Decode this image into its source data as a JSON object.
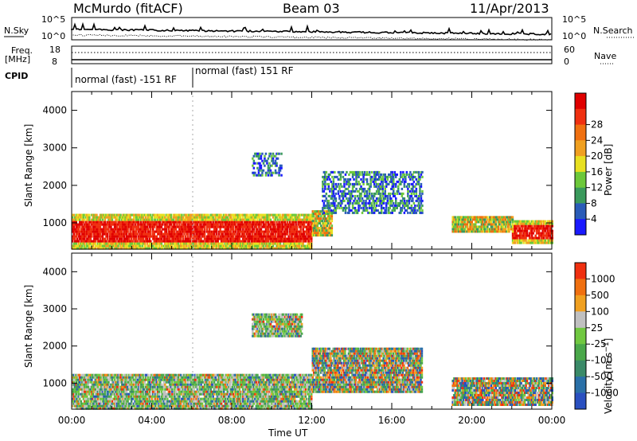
{
  "header": {
    "station": "McMurdo (fitACF)",
    "beam": "Beam 03",
    "date": "11/Apr/2013"
  },
  "side_labels": {
    "nsky": "N.Sky",
    "nsearch": "N.Search",
    "freq_top": "Freq.",
    "freq_unit": "[MHz]",
    "nave": "Nave",
    "cpid": "CPID"
  },
  "small_panels": {
    "noise_left_ticks": [
      "10^5",
      "10^0"
    ],
    "noise_right_ticks": [
      "10^5",
      "10^0"
    ],
    "freq_left_ticks": [
      "18",
      "8"
    ],
    "nave_right_ticks": [
      "60",
      "0"
    ]
  },
  "cpid_segments": [
    {
      "label": "normal (fast) -151 RF"
    },
    {
      "label": "normal (fast) 151 RF"
    }
  ],
  "x_axis": {
    "ticks": [
      "00:00",
      "04:00",
      "08:00",
      "12:00",
      "16:00",
      "20:00",
      "00:00"
    ],
    "label": "Time UT"
  },
  "chart_data": [
    {
      "type": "heatmap",
      "name": "power",
      "ylabel": "Slant Range [km]",
      "y_ticks": [
        "1000",
        "2000",
        "3000",
        "4000"
      ],
      "ylim": [
        300,
        4500
      ],
      "xlim_hours": [
        0,
        24
      ],
      "colorbar": {
        "label": "Power [dB]",
        "ticks": [
          "4",
          "8",
          "12",
          "16",
          "20",
          "24",
          "28"
        ],
        "colors": [
          "#1a1aff",
          "#2a5cb8",
          "#3a9a5c",
          "#6cc83a",
          "#e8e020",
          "#f0a020",
          "#f07010",
          "#f03010",
          "#e00000"
        ]
      },
      "scatter_bands": [
        {
          "t0": 0.0,
          "t1": 12.0,
          "r0": 350,
          "r1": 1300,
          "level": "strong"
        },
        {
          "t0": 12.0,
          "t1": 13.0,
          "r0": 700,
          "r1": 1400,
          "level": "medium"
        },
        {
          "t0": 22.0,
          "t1": 24.0,
          "r0": 500,
          "r1": 1100,
          "level": "strong"
        },
        {
          "t0": 19.0,
          "t1": 22.0,
          "r0": 800,
          "r1": 1200,
          "level": "medium"
        },
        {
          "t0": 12.5,
          "t1": 17.5,
          "r0": 1300,
          "r1": 2400,
          "level": "weak"
        },
        {
          "t0": 9.0,
          "t1": 10.5,
          "r0": 2300,
          "r1": 2900,
          "level": "weak"
        }
      ]
    },
    {
      "type": "heatmap",
      "name": "velocity",
      "ylabel": "Slant Range [km]",
      "y_ticks": [
        "1000",
        "2000",
        "3000",
        "4000"
      ],
      "ylim": [
        300,
        4500
      ],
      "xlim_hours": [
        0,
        24
      ],
      "colorbar": {
        "label": "Velocity [m s^-1]",
        "ticks": [
          "1000",
          "500",
          "100",
          "25",
          "-25",
          "-100",
          "-500",
          "-1000"
        ],
        "colors": [
          "#2a50c0",
          "#2a70a8",
          "#3a8a68",
          "#4aa84a",
          "#70c840",
          "#c0c0c0",
          "#f0a020",
          "#f07010",
          "#f03010"
        ]
      },
      "scatter_bands": [
        {
          "t0": 0.0,
          "t1": 12.0,
          "r0": 350,
          "r1": 1250,
          "level": "mixed"
        },
        {
          "t0": 12.0,
          "t1": 17.5,
          "r0": 800,
          "r1": 2000,
          "level": "mixed"
        },
        {
          "t0": 19.0,
          "t1": 24.0,
          "r0": 450,
          "r1": 1200,
          "level": "mixed"
        },
        {
          "t0": 9.0,
          "t1": 11.5,
          "r0": 2300,
          "r1": 2900,
          "level": "mixed"
        }
      ]
    }
  ]
}
